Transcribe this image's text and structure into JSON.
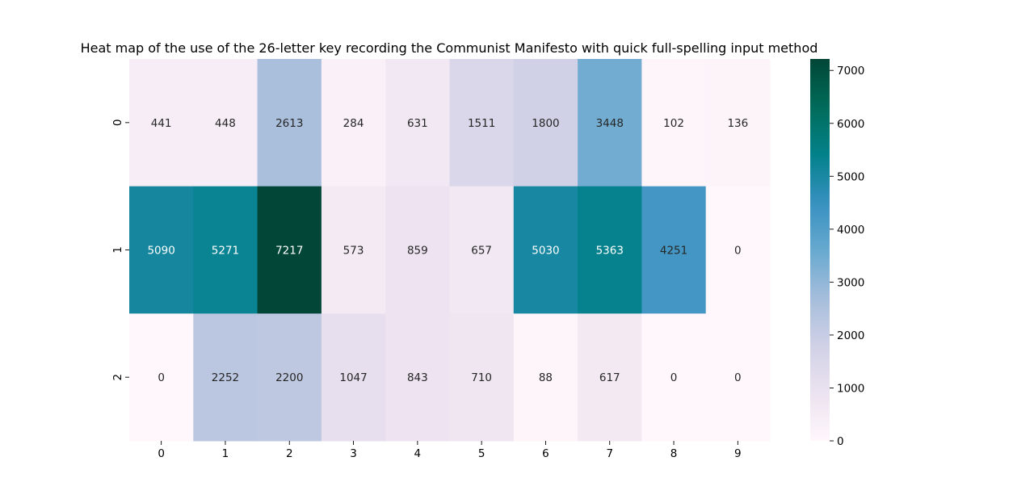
{
  "chart_data": {
    "type": "heatmap",
    "title": "Heat map of the use of the 26-letter key recording the Communist Manifesto with quick full-spelling input method",
    "xlabel": "",
    "ylabel": "",
    "x_categories": [
      "0",
      "1",
      "2",
      "3",
      "4",
      "5",
      "6",
      "7",
      "8",
      "9"
    ],
    "y_categories": [
      "0",
      "1",
      "2"
    ],
    "values": [
      [
        441,
        448,
        2613,
        284,
        631,
        1511,
        1800,
        3448,
        102,
        136
      ],
      [
        5090,
        5271,
        7217,
        573,
        859,
        657,
        5030,
        5363,
        4251,
        0
      ],
      [
        0,
        2252,
        2200,
        1047,
        843,
        710,
        88,
        617,
        0,
        0
      ]
    ],
    "colormap": "PuBuGn",
    "vmin": 0,
    "vmax": 7217,
    "colorbar_ticks": [
      0,
      1000,
      2000,
      3000,
      4000,
      5000,
      6000,
      7000
    ],
    "grid": false,
    "annotations": true
  }
}
